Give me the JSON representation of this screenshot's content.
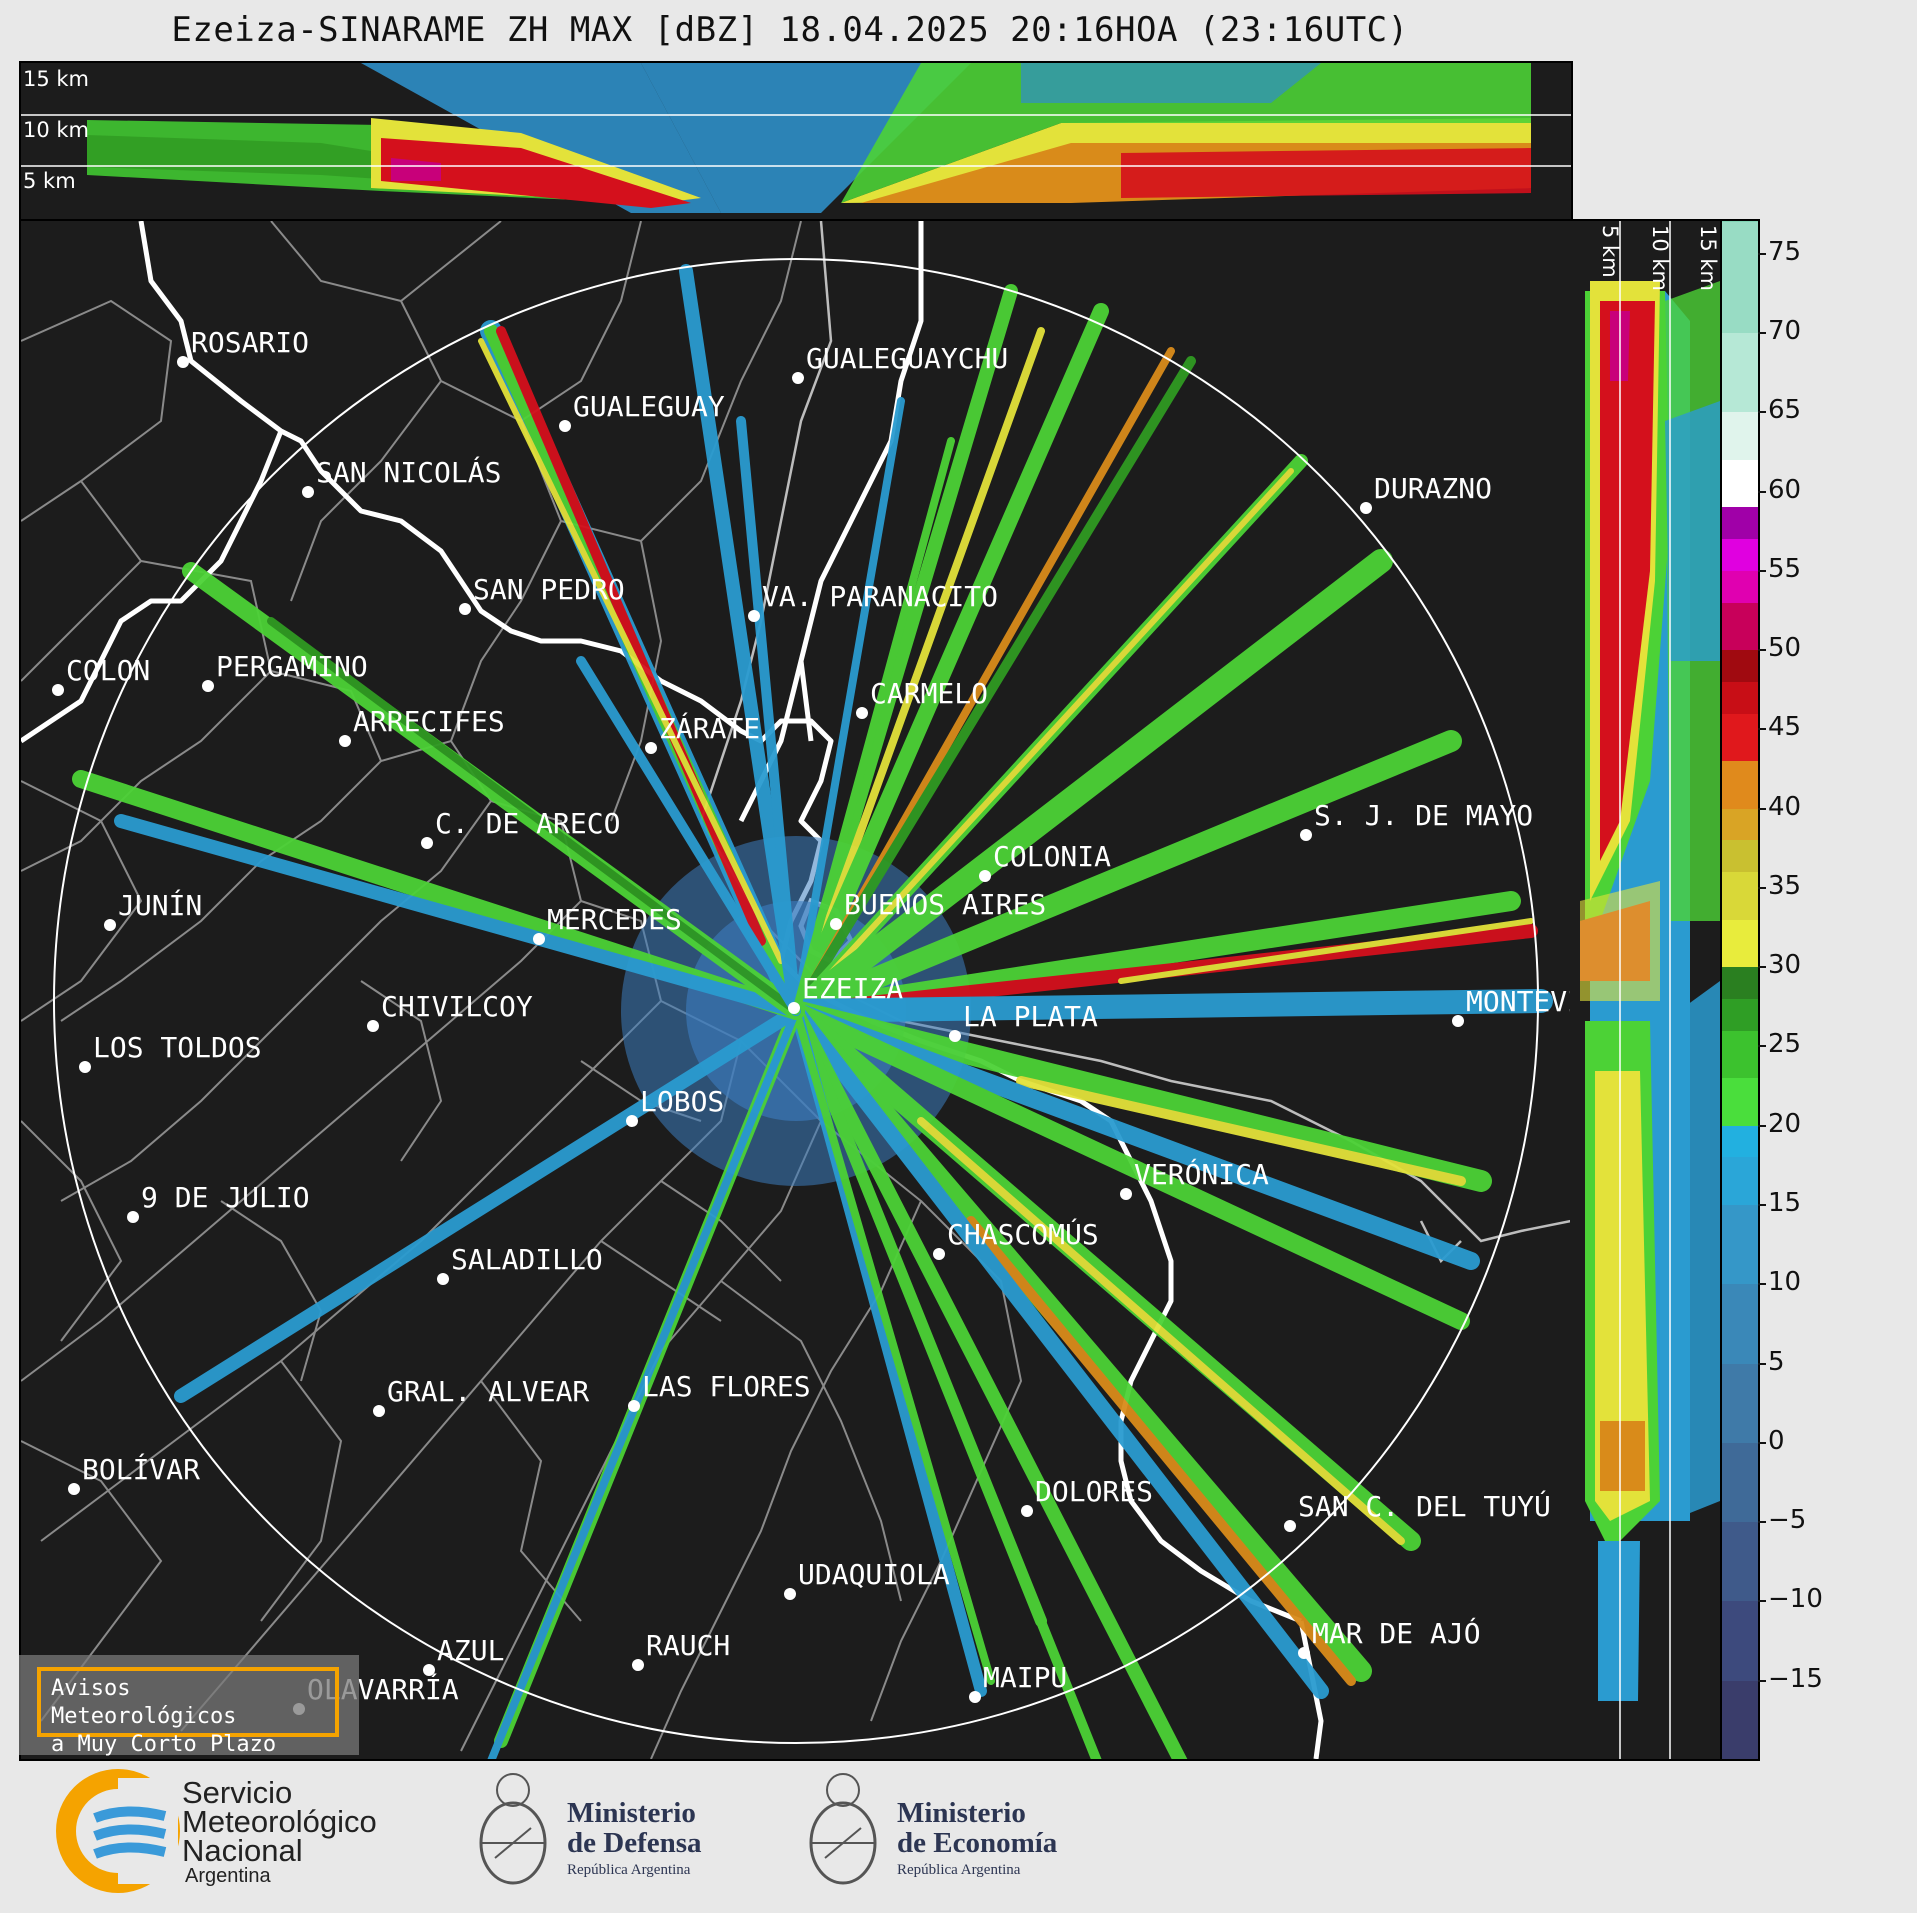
{
  "title": "Ezeiza-SINARAME ZH MAX [dBZ] 18.04.2025 20:16HOA (23:16UTC)",
  "top_panel": {
    "km_labels": [
      "15 km",
      "10 km",
      "5 km"
    ]
  },
  "side_panel": {
    "km_labels": [
      "5 km",
      "10 km",
      "15 km"
    ]
  },
  "colorbar": {
    "ticks": [
      "75",
      "70",
      "65",
      "60",
      "55",
      "50",
      "45",
      "40",
      "35",
      "30",
      "25",
      "20",
      "15",
      "10",
      "5",
      "0",
      "−5",
      "−10",
      "−15"
    ],
    "min": -20,
    "max": 77
  },
  "cities": [
    {
      "name": "ROSARIO"
    },
    {
      "name": "GUALEGUAYCHU"
    },
    {
      "name": "GUALEGUAY"
    },
    {
      "name": "SAN NICOLÁS"
    },
    {
      "name": "DURAZNO"
    },
    {
      "name": "SAN PEDRO"
    },
    {
      "name": "VA. PARANACITO"
    },
    {
      "name": "COLON"
    },
    {
      "name": "PERGAMINO"
    },
    {
      "name": "CARMELO"
    },
    {
      "name": "ARRECIFES"
    },
    {
      "name": "ZÁRATE"
    },
    {
      "name": "S. J. DE MAYO"
    },
    {
      "name": "C. DE ARECO"
    },
    {
      "name": "COLONIA"
    },
    {
      "name": "JUNÍN"
    },
    {
      "name": "BUENOS AIRES"
    },
    {
      "name": "MERCEDES"
    },
    {
      "name": "EZEIZA"
    },
    {
      "name": "MONTEVIDEO"
    },
    {
      "name": "CHIVILCOY"
    },
    {
      "name": "LA PLATA"
    },
    {
      "name": "LOS TOLDOS"
    },
    {
      "name": "LOBOS"
    },
    {
      "name": "VERÓNICA"
    },
    {
      "name": "9 DE JULIO"
    },
    {
      "name": "CHASCOMÚS"
    },
    {
      "name": "SALADILLO"
    },
    {
      "name": "GRAL. ALVEAR"
    },
    {
      "name": "LAS FLORES"
    },
    {
      "name": "BOLÍVAR"
    },
    {
      "name": "DOLORES"
    },
    {
      "name": "SAN C. DEL TUYÚ"
    },
    {
      "name": "UDAQUIOLA"
    },
    {
      "name": "AZUL"
    },
    {
      "name": "RAUCH"
    },
    {
      "name": "MAR DE AJÓ"
    },
    {
      "name": "OLAVARRÍA"
    },
    {
      "name": "MAIPU"
    }
  ],
  "avisos": {
    "line1": "Avisos Meteorológicos",
    "line2": "a Muy Corto Plazo"
  },
  "logos": {
    "smn": {
      "line1": "Servicio",
      "line2": "Meteorológico",
      "line3": "Nacional",
      "sub": "Argentina"
    },
    "defensa": {
      "line1": "Ministerio",
      "line2": "de Defensa",
      "sub": "República Argentina"
    },
    "economia": {
      "line1": "Ministerio",
      "line2": "de Economía",
      "sub": "República Argentina"
    }
  },
  "colors": {
    "background": "#1c1c1c",
    "page": "#e8e8e8",
    "avisos_border": "#f5a300",
    "smn_orange": "#f5a300",
    "smn_blue": "#3a9ad9"
  }
}
